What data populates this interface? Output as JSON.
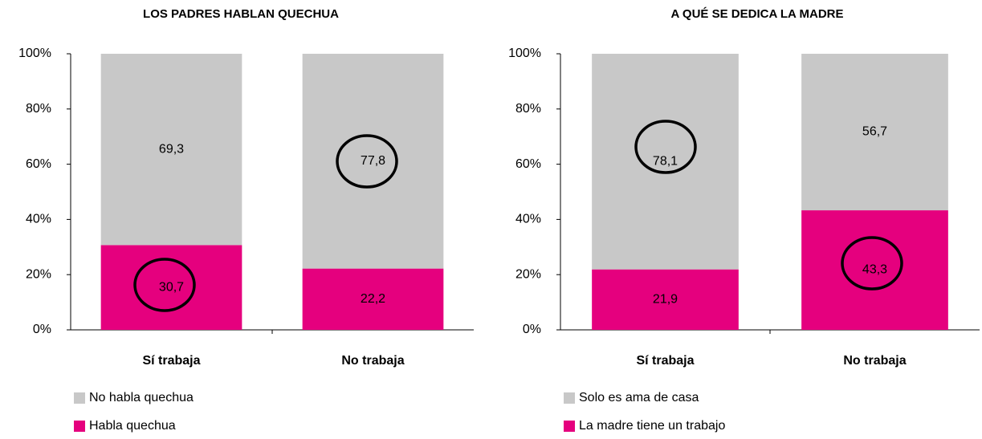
{
  "chart_data": [
    {
      "type": "stacked_bar",
      "title": "LOS PADRES HABLAN QUECHUA",
      "categories": [
        "Sí trabaja",
        "No trabaja"
      ],
      "series": [
        {
          "name": "Habla quechua",
          "color": "#e5007e",
          "values": [
            30.7,
            22.2
          ],
          "value_labels": [
            "30,7",
            "22,2"
          ]
        },
        {
          "name": "No habla quechua",
          "color": "#c8c8c8",
          "values": [
            69.3,
            77.8
          ],
          "value_labels": [
            "69,3",
            "77,8"
          ]
        }
      ],
      "ylim": [
        0,
        100
      ],
      "yticks": [
        {
          "value": 0,
          "label": "0%"
        },
        {
          "value": 20,
          "label": "20%"
        },
        {
          "value": 40,
          "label": "40%"
        },
        {
          "value": 60,
          "label": "60%"
        },
        {
          "value": 80,
          "label": "80%"
        },
        {
          "value": 100,
          "label": "100%"
        }
      ]
    },
    {
      "type": "stacked_bar",
      "title": "A QUÉ SE DEDICA LA MADRE",
      "categories": [
        "Sí trabaja",
        "No trabaja"
      ],
      "series": [
        {
          "name": "La madre tiene un trabajo",
          "color": "#e5007e",
          "values": [
            21.9,
            43.3
          ],
          "value_labels": [
            "21,9",
            "43,3"
          ]
        },
        {
          "name": "Solo es ama de casa",
          "color": "#c8c8c8",
          "values": [
            78.1,
            56.7
          ],
          "value_labels": [
            "78,1",
            "56,7"
          ]
        }
      ],
      "ylim": [
        0,
        100
      ],
      "yticks": [
        {
          "value": 0,
          "label": "0%"
        },
        {
          "value": 20,
          "label": "20%"
        },
        {
          "value": 40,
          "label": "40%"
        },
        {
          "value": 60,
          "label": "60%"
        },
        {
          "value": 80,
          "label": "80%"
        },
        {
          "value": 100,
          "label": "100%"
        }
      ]
    }
  ]
}
